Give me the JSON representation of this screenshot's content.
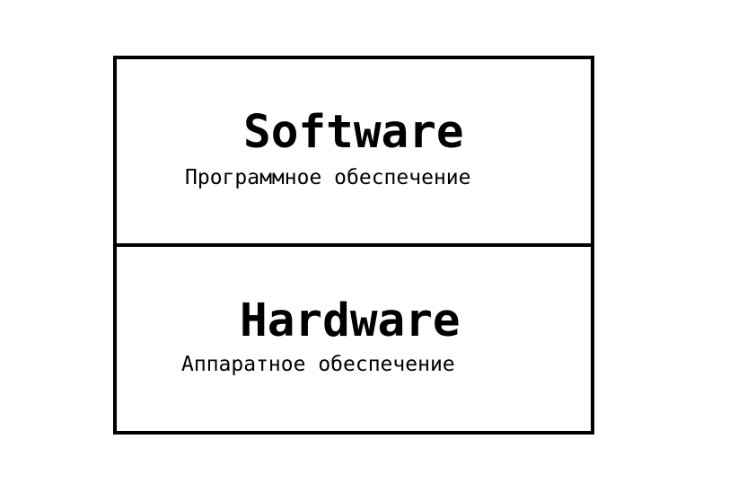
{
  "diagram": {
    "layers": [
      {
        "title": "Software",
        "subtitle": "Программное обеспечение"
      },
      {
        "title": "Hardware",
        "subtitle": "Аппаратное обеспечение"
      }
    ]
  }
}
